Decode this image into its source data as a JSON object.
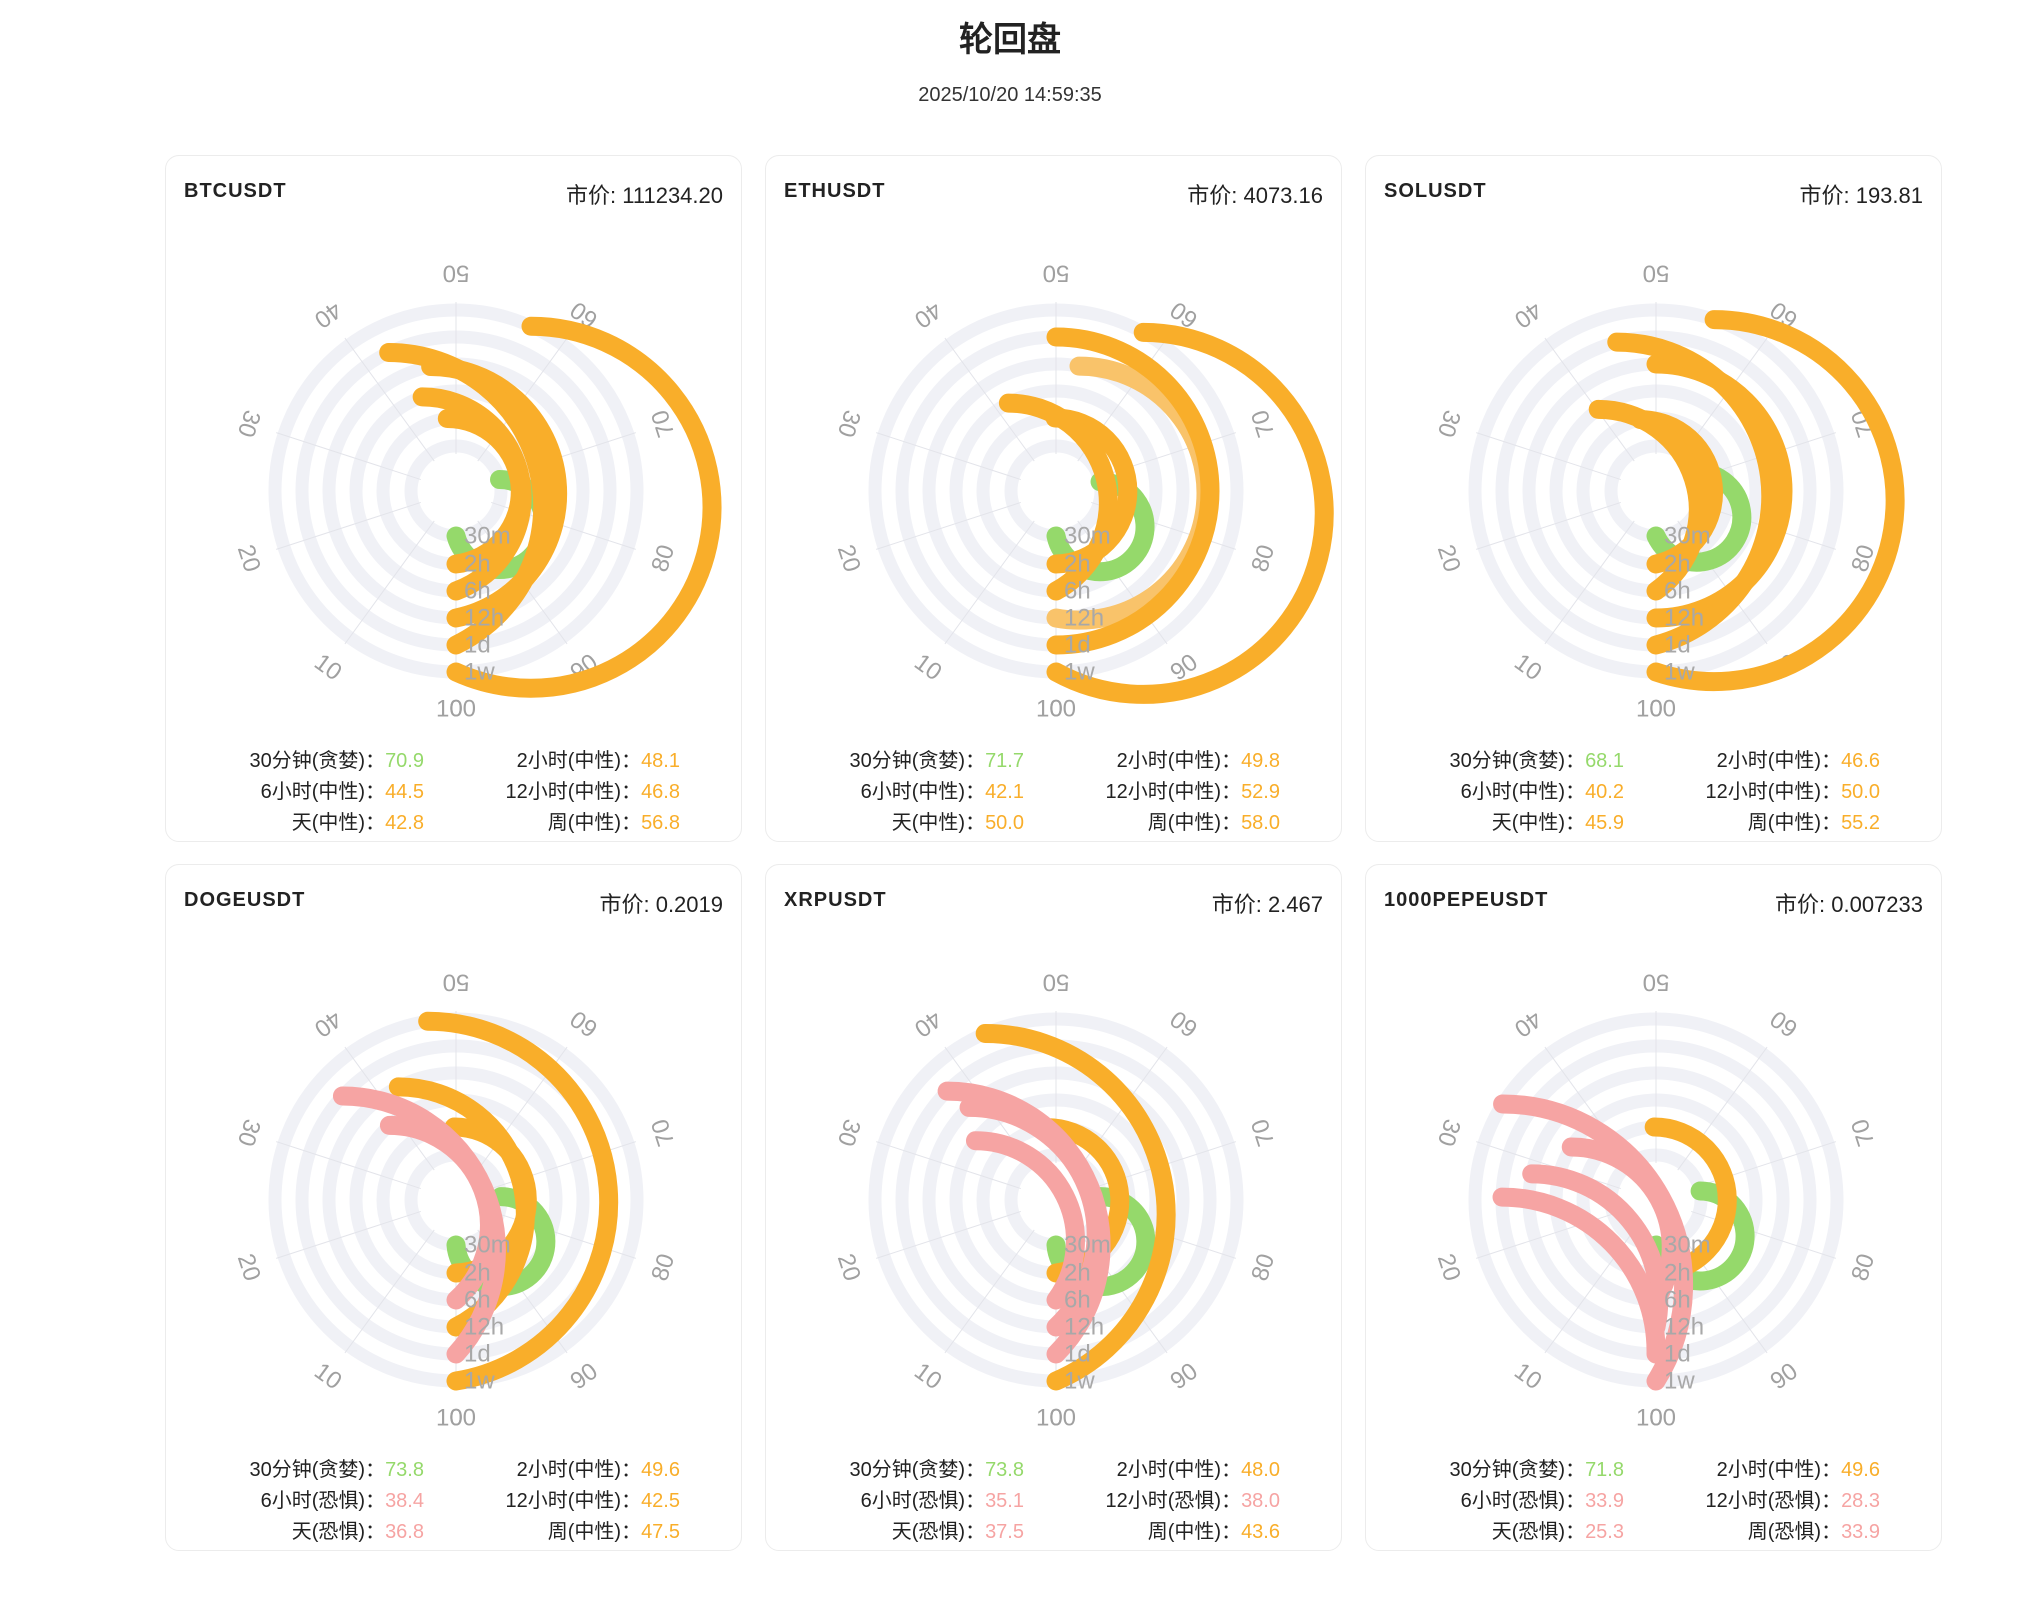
{
  "title": "轮回盘",
  "timestamp": "2025/10/20 14:59:35",
  "price_prefix": "市价: ",
  "colors": {
    "greed": "#95d96b",
    "neutral": "#f9ae2a",
    "neutral_light": "#f9c36a",
    "fear": "#f6a4a3",
    "track": "#f0f1f6",
    "tick_text": "#a0a0a0"
  },
  "axis": {
    "min": 0,
    "max": 100,
    "ticks": [
      "0",
      "10",
      "20",
      "30",
      "40",
      "50",
      "60",
      "70",
      "80",
      "90",
      "100"
    ]
  },
  "ring_labels": [
    "30m",
    "2h",
    "6h",
    "12h",
    "1d",
    "1w"
  ],
  "chart_data": [
    {
      "type": "radial_bar",
      "title": "BTCUSDT",
      "price": "111234.20",
      "categories": [
        "30m",
        "2h",
        "6h",
        "12h",
        "1d",
        "1w"
      ],
      "values": [
        70.9,
        48.1,
        44.5,
        46.8,
        42.8,
        56.8
      ],
      "stats": [
        {
          "label": "30分钟(贪婪)",
          "value": "70.9",
          "mood": "greed"
        },
        {
          "label": "2小时(中性)",
          "value": "48.1",
          "mood": "neutral"
        },
        {
          "label": "6小时(中性)",
          "value": "44.5",
          "mood": "neutral"
        },
        {
          "label": "12小时(中性)",
          "value": "46.8",
          "mood": "neutral"
        },
        {
          "label": "天(中性)",
          "value": "42.8",
          "mood": "neutral"
        },
        {
          "label": "周(中性)",
          "value": "56.8",
          "mood": "neutral"
        }
      ],
      "ring_colors": [
        "greed",
        "neutral",
        "neutral",
        "neutral",
        "neutral",
        "neutral"
      ]
    },
    {
      "type": "radial_bar",
      "title": "ETHUSDT",
      "price": "4073.16",
      "categories": [
        "30m",
        "2h",
        "6h",
        "12h",
        "1d",
        "1w"
      ],
      "values": [
        71.7,
        49.8,
        42.1,
        52.9,
        50.0,
        58.0
      ],
      "stats": [
        {
          "label": "30分钟(贪婪)",
          "value": "71.7",
          "mood": "greed"
        },
        {
          "label": "2小时(中性)",
          "value": "49.8",
          "mood": "neutral"
        },
        {
          "label": "6小时(中性)",
          "value": "42.1",
          "mood": "neutral"
        },
        {
          "label": "12小时(中性)",
          "value": "52.9",
          "mood": "neutral"
        },
        {
          "label": "天(中性)",
          "value": "50.0",
          "mood": "neutral"
        },
        {
          "label": "周(中性)",
          "value": "58.0",
          "mood": "neutral"
        }
      ],
      "ring_colors": [
        "greed",
        "neutral",
        "neutral",
        "neutral_light",
        "neutral",
        "neutral"
      ]
    },
    {
      "type": "radial_bar",
      "title": "SOLUSDT",
      "price": "193.81",
      "categories": [
        "30m",
        "2h",
        "6h",
        "12h",
        "1d",
        "1w"
      ],
      "values": [
        68.1,
        46.6,
        40.2,
        50.0,
        45.9,
        55.2
      ],
      "stats": [
        {
          "label": "30分钟(贪婪)",
          "value": "68.1",
          "mood": "greed"
        },
        {
          "label": "2小时(中性)",
          "value": "46.6",
          "mood": "neutral"
        },
        {
          "label": "6小时(中性)",
          "value": "40.2",
          "mood": "neutral"
        },
        {
          "label": "12小时(中性)",
          "value": "50.0",
          "mood": "neutral"
        },
        {
          "label": "天(中性)",
          "value": "45.9",
          "mood": "neutral"
        },
        {
          "label": "周(中性)",
          "value": "55.2",
          "mood": "neutral"
        }
      ],
      "ring_colors": [
        "greed",
        "neutral",
        "neutral",
        "neutral",
        "neutral",
        "neutral"
      ]
    },
    {
      "type": "radial_bar",
      "title": "DOGEUSDT",
      "price": "0.2019",
      "categories": [
        "30m",
        "2h",
        "6h",
        "12h",
        "1d",
        "1w"
      ],
      "values": [
        73.8,
        49.6,
        38.4,
        42.5,
        36.8,
        47.5
      ],
      "stats": [
        {
          "label": "30分钟(贪婪)",
          "value": "73.8",
          "mood": "greed"
        },
        {
          "label": "2小时(中性)",
          "value": "49.6",
          "mood": "neutral"
        },
        {
          "label": "6小时(恐惧)",
          "value": "38.4",
          "mood": "fear"
        },
        {
          "label": "12小时(中性)",
          "value": "42.5",
          "mood": "neutral"
        },
        {
          "label": "天(恐惧)",
          "value": "36.8",
          "mood": "fear"
        },
        {
          "label": "周(中性)",
          "value": "47.5",
          "mood": "neutral"
        }
      ],
      "ring_colors": [
        "greed",
        "neutral",
        "fear",
        "neutral",
        "fear",
        "neutral"
      ]
    },
    {
      "type": "radial_bar",
      "title": "XRPUSDT",
      "price": "2.467",
      "categories": [
        "30m",
        "2h",
        "6h",
        "12h",
        "1d",
        "1w"
      ],
      "values": [
        73.8,
        48.0,
        35.1,
        38.0,
        37.5,
        43.6
      ],
      "stats": [
        {
          "label": "30分钟(贪婪)",
          "value": "73.8",
          "mood": "greed"
        },
        {
          "label": "2小时(中性)",
          "value": "48.0",
          "mood": "neutral"
        },
        {
          "label": "6小时(恐惧)",
          "value": "35.1",
          "mood": "fear"
        },
        {
          "label": "12小时(恐惧)",
          "value": "38.0",
          "mood": "fear"
        },
        {
          "label": "天(恐惧)",
          "value": "37.5",
          "mood": "fear"
        },
        {
          "label": "周(中性)",
          "value": "43.6",
          "mood": "neutral"
        }
      ],
      "ring_colors": [
        "greed",
        "neutral",
        "fear",
        "fear",
        "fear",
        "neutral"
      ]
    },
    {
      "type": "radial_bar",
      "title": "1000PEPEUSDT",
      "price": "0.007233",
      "categories": [
        "30m",
        "2h",
        "6h",
        "12h",
        "1d",
        "1w"
      ],
      "values": [
        71.8,
        49.6,
        33.9,
        28.3,
        25.3,
        33.9
      ],
      "stats": [
        {
          "label": "30分钟(贪婪)",
          "value": "71.8",
          "mood": "greed"
        },
        {
          "label": "2小时(中性)",
          "value": "49.6",
          "mood": "neutral"
        },
        {
          "label": "6小时(恐惧)",
          "value": "33.9",
          "mood": "fear"
        },
        {
          "label": "12小时(恐惧)",
          "value": "28.3",
          "mood": "fear"
        },
        {
          "label": "天(恐惧)",
          "value": "25.3",
          "mood": "fear"
        },
        {
          "label": "周(恐惧)",
          "value": "33.9",
          "mood": "fear"
        }
      ],
      "ring_colors": [
        "greed",
        "neutral",
        "fear",
        "fear",
        "fear",
        "fear"
      ]
    }
  ]
}
